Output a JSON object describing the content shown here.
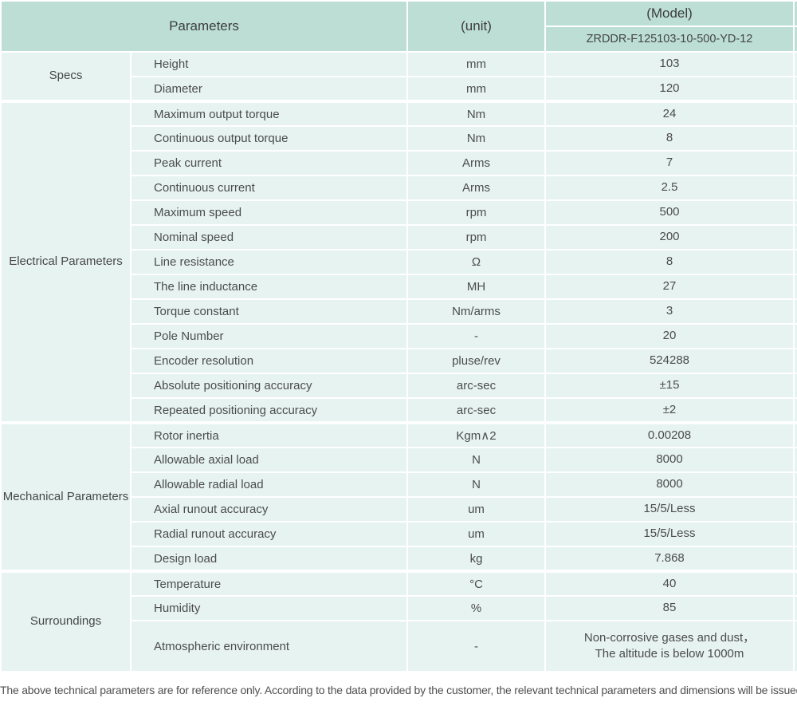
{
  "header": {
    "parameters_label": "Parameters",
    "unit_label": "(unit)",
    "model_label": "(Model)",
    "model_value": "ZRDDR-F125103-10-500-YD-12"
  },
  "sections": [
    {
      "id": "specs",
      "group": "Specs",
      "rows": [
        [
          "Height",
          "mm",
          "103"
        ],
        [
          "Diameter",
          "mm",
          "120"
        ]
      ]
    },
    {
      "id": "electrical-parameters",
      "group": "Electrical Parameters",
      "rows": [
        [
          "Maximum output torque",
          "Nm",
          "24"
        ],
        [
          "Continuous output torque",
          "Nm",
          "8"
        ],
        [
          "Peak current",
          "Arms",
          "7"
        ],
        [
          "Continuous current",
          "Arms",
          "2.5"
        ],
        [
          "Maximum speed",
          "rpm",
          "500"
        ],
        [
          "Nominal speed",
          "rpm",
          "200"
        ],
        [
          "Line resistance",
          "Ω",
          "8"
        ],
        [
          "The line inductance",
          "MH",
          "27"
        ],
        [
          "Torque constant",
          "Nm/arms",
          "3"
        ],
        [
          "Pole Number",
          "-",
          "20"
        ],
        [
          "Encoder resolution",
          "pluse/rev",
          "524288"
        ],
        [
          "Absolute positioning accuracy",
          "arc-sec",
          "±15"
        ],
        [
          "Repeated positioning accuracy",
          "arc-sec",
          "±2"
        ]
      ]
    },
    {
      "id": "mechanical-parameters",
      "group": "Mechanical Parameters",
      "rows": [
        [
          "Rotor inertia",
          "Kgm∧2",
          "0.00208"
        ],
        [
          "Allowable axial load",
          "N",
          "8000"
        ],
        [
          "Allowable radial load",
          "N",
          "8000"
        ],
        [
          "Axial runout accuracy",
          "um",
          "15/5/Less"
        ],
        [
          "Radial runout accuracy",
          "um",
          "15/5/Less"
        ],
        [
          "Design load",
          "kg",
          "7.868"
        ]
      ]
    },
    {
      "id": "surroundings",
      "group": "Surroundings",
      "rows": [
        [
          "Temperature",
          "°C",
          "40"
        ],
        [
          "Humidity",
          "%",
          "85"
        ],
        [
          "Atmospheric environment",
          "-",
          "Non-corrosive gases and dust，\nThe altitude is below 1000m"
        ]
      ]
    }
  ],
  "footer": {
    "note": "The above technical parameters are for reference only. According to the data provided by the customer, the relevant technical parameters and dimensions will be issued."
  },
  "colors": {
    "header_bg": "#bcded4",
    "row_bg": "#e6f3f0",
    "gap": "#ffffff",
    "header_text": "#3d3d3d",
    "body_text": "#4c4c4c"
  }
}
